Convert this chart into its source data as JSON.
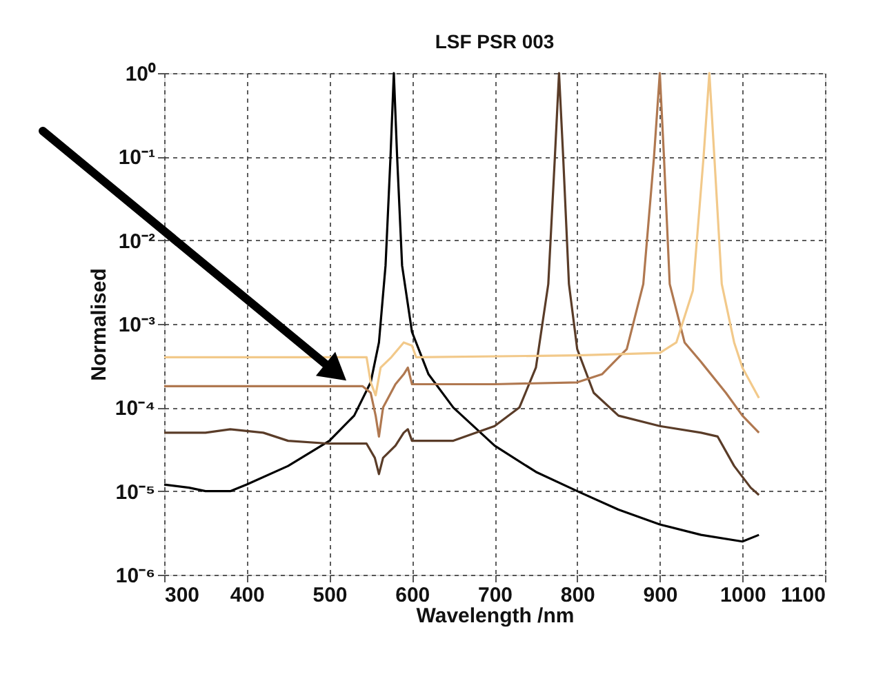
{
  "chart_data": {
    "type": "line",
    "title": "LSF PSR 003",
    "xlabel": "Wavelength /nm",
    "ylabel": "Normalised",
    "xlim": [
      300,
      1100
    ],
    "xticks": [
      300,
      400,
      500,
      600,
      700,
      800,
      900,
      1000,
      1100
    ],
    "ylim": [
      1e-06,
      1
    ],
    "log": "y",
    "yticks": [
      {
        "value": 1e-06,
        "label": "10⁻⁶"
      },
      {
        "value": 1e-05,
        "label": "10⁻⁵"
      },
      {
        "value": 0.0001,
        "label": "10⁻⁴"
      },
      {
        "value": 0.001,
        "label": "10⁻³"
      },
      {
        "value": 0.01,
        "label": "10⁻²"
      },
      {
        "value": 0.1,
        "label": "10⁻¹"
      },
      {
        "value": 1,
        "label": "10⁰"
      }
    ],
    "grid": true,
    "line_style": "solid",
    "marker": "none",
    "series": [
      {
        "color": "#000000",
        "x": [
          300,
          330,
          350,
          380,
          400,
          450,
          500,
          530,
          550,
          560,
          568,
          574,
          578,
          582,
          588,
          600,
          620,
          650,
          700,
          750,
          800,
          850,
          900,
          950,
          1000,
          1020
        ],
        "values": [
          1.2e-05,
          1.1e-05,
          1e-05,
          1e-05,
          1.2e-05,
          2e-05,
          4e-05,
          8e-05,
          0.0002,
          0.0006,
          0.005,
          0.1,
          1,
          0.1,
          0.005,
          0.0008,
          0.00025,
          0.0001,
          3.5e-05,
          1.7e-05,
          1e-05,
          6e-06,
          4e-06,
          3e-06,
          2.5e-06,
          3e-06
        ]
      },
      {
        "color": "#5a3c28",
        "x": [
          300,
          350,
          380,
          420,
          450,
          500,
          545,
          555,
          560,
          565,
          580,
          590,
          595,
          600,
          650,
          700,
          730,
          750,
          765,
          773,
          778,
          783,
          790,
          800,
          820,
          850,
          900,
          950,
          970,
          990,
          1010,
          1020
        ],
        "values": [
          5e-05,
          5e-05,
          5.5e-05,
          5e-05,
          4e-05,
          3.7e-05,
          3.7e-05,
          2.5e-05,
          1.6e-05,
          2.5e-05,
          3.5e-05,
          5e-05,
          5.5e-05,
          4e-05,
          4e-05,
          6e-05,
          0.0001,
          0.0003,
          0.003,
          0.1,
          1,
          0.1,
          0.003,
          0.0005,
          0.00015,
          8e-05,
          6e-05,
          5e-05,
          4.5e-05,
          2e-05,
          1.1e-05,
          9e-06
        ]
      },
      {
        "color": "#b07850",
        "x": [
          300,
          540,
          550,
          556,
          560,
          565,
          580,
          590,
          595,
          600,
          700,
          800,
          830,
          860,
          880,
          893,
          900,
          905,
          912,
          930,
          950,
          980,
          1000,
          1020
        ],
        "values": [
          0.00018,
          0.00018,
          0.00015,
          8e-05,
          4.5e-05,
          0.0001,
          0.00019,
          0.00025,
          0.0003,
          0.00019,
          0.00019,
          0.0002,
          0.00025,
          0.0005,
          0.003,
          0.1,
          1,
          0.1,
          0.003,
          0.0006,
          0.00035,
          0.00015,
          8e-05,
          5e-05
        ]
      },
      {
        "color": "#f2c98a",
        "x": [
          300,
          545,
          550,
          556,
          562,
          575,
          590,
          600,
          605,
          800,
          900,
          920,
          940,
          953,
          960,
          966,
          975,
          990,
          1000,
          1020
        ],
        "values": [
          0.0004,
          0.0004,
          0.0002,
          0.00014,
          0.0003,
          0.0004,
          0.0006,
          0.00055,
          0.0004,
          0.00042,
          0.00045,
          0.0006,
          0.0025,
          0.1,
          1,
          0.1,
          0.003,
          0.0006,
          0.0003,
          0.00013
        ]
      }
    ]
  }
}
